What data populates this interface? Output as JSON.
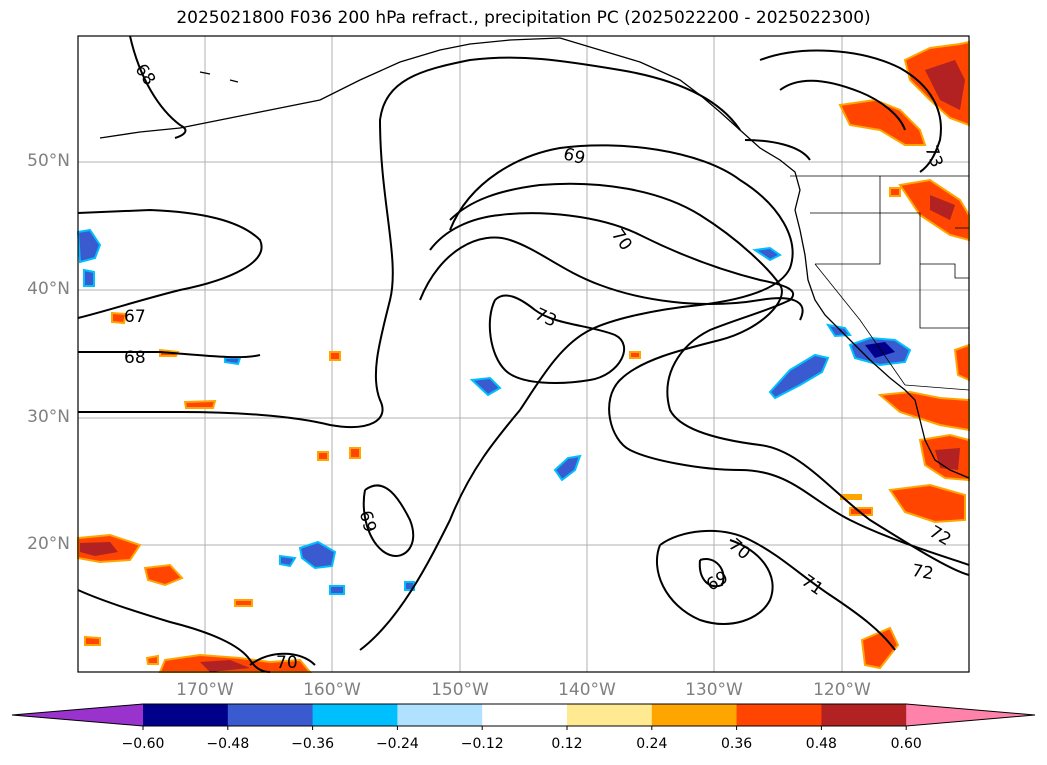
{
  "title": "2025021800 F036 200 hPa refract., precipitation PC (2025022200 - 2025022300)",
  "map": {
    "lat_ticks": [
      "50°N",
      "40°N",
      "30°N",
      "20°N"
    ],
    "lon_ticks": [
      "170°W",
      "160°W",
      "150°W",
      "140°W",
      "130°W",
      "120°W"
    ],
    "contour_labels": [
      "68",
      "69",
      "70",
      "73",
      "67",
      "68",
      "73",
      "69",
      "70",
      "69",
      "71",
      "72",
      "72",
      "70"
    ],
    "contour_color": "#000000"
  },
  "colorbar": {
    "labels": [
      "−0.60",
      "−0.48",
      "−0.36",
      "−0.24",
      "−0.12",
      "0.12",
      "0.24",
      "0.36",
      "0.48",
      "0.60"
    ],
    "colors": [
      "#9a32cd",
      "#00008b",
      "#3a5bd0",
      "#00bfff",
      "#b0e2ff",
      "#ffffff",
      "#ffe991",
      "#ffa500",
      "#ff4500",
      "#b22222",
      "#ff82ab"
    ]
  }
}
